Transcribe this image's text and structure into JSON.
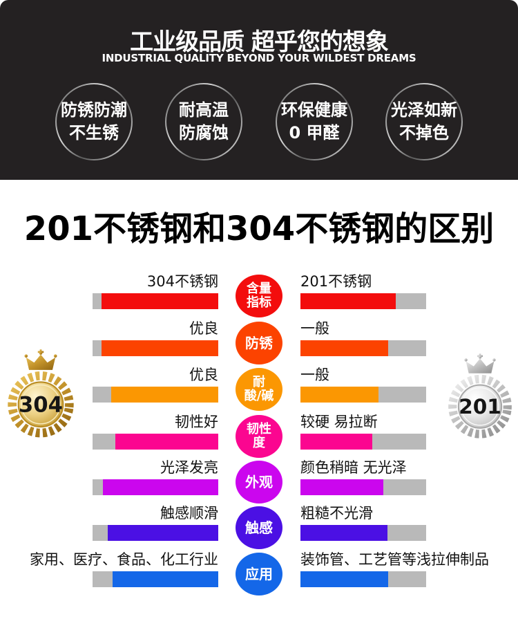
{
  "header": {
    "title": "工业级品质 超乎您的想象",
    "subtitle": "INDUSTRIAL QUALITY BEYOND YOUR WILDEST DREAMS",
    "features": [
      {
        "line1": "防锈防潮",
        "line2": "不生锈"
      },
      {
        "line1": "耐高温",
        "line2": "防腐蚀"
      },
      {
        "line1": "环保健康",
        "line2": "0 甲醛"
      },
      {
        "line1": "光泽如新",
        "line2": "不掉色"
      }
    ]
  },
  "section_title": "201不锈钢和304不锈钢的区别",
  "comparison": {
    "left_medal": {
      "label": "304",
      "style": "gold"
    },
    "right_medal": {
      "label": "201",
      "style": "silver"
    },
    "track_color": "#b9b9b9",
    "left_column_header": "304不锈钢",
    "right_column_header": "201不锈钢",
    "rows": [
      {
        "category": "含量指标",
        "cat_lines": [
          "含量",
          "指标"
        ],
        "color": "#f30d0d",
        "left_label": "304不锈钢",
        "right_label": "201不锈钢",
        "left_fill": 0.93,
        "right_fill": 0.76
      },
      {
        "category": "防锈",
        "cat_lines": [
          "防锈"
        ],
        "color": "#fc4300",
        "left_label": "优良",
        "right_label": "一般",
        "left_fill": 0.93,
        "right_fill": 0.7
      },
      {
        "category": "耐酸/碱",
        "cat_lines": [
          "耐",
          "酸/碱"
        ],
        "color": "#fb9702",
        "left_label": "优良",
        "right_label": "一般",
        "left_fill": 0.85,
        "right_fill": 0.62
      },
      {
        "category": "韧性度",
        "cat_lines": [
          "韧性",
          "度"
        ],
        "color": "#fb0690",
        "left_label": "韧性好",
        "right_label": "较硬 易拉断",
        "left_fill": 0.82,
        "right_fill": 0.57
      },
      {
        "category": "外观",
        "cat_lines": [
          "外观"
        ],
        "color": "#cb06ee",
        "left_label": "光泽发亮",
        "right_label": "颜色稍暗 无光泽",
        "left_fill": 0.92,
        "right_fill": 0.66
      },
      {
        "category": "触感",
        "cat_lines": [
          "触感"
        ],
        "color": "#4b10e4",
        "left_label": "触感顺滑",
        "right_label": "粗糙不光滑",
        "left_fill": 0.88,
        "right_fill": 0.69
      },
      {
        "category": "应用",
        "cat_lines": [
          "应用"
        ],
        "color": "#1467e8",
        "left_label": "家用、医疗、食品、化工行业",
        "right_label": "装饰管、工艺管等浅拉伸制品",
        "left_fill": 0.84,
        "right_fill": 0.7
      }
    ]
  }
}
